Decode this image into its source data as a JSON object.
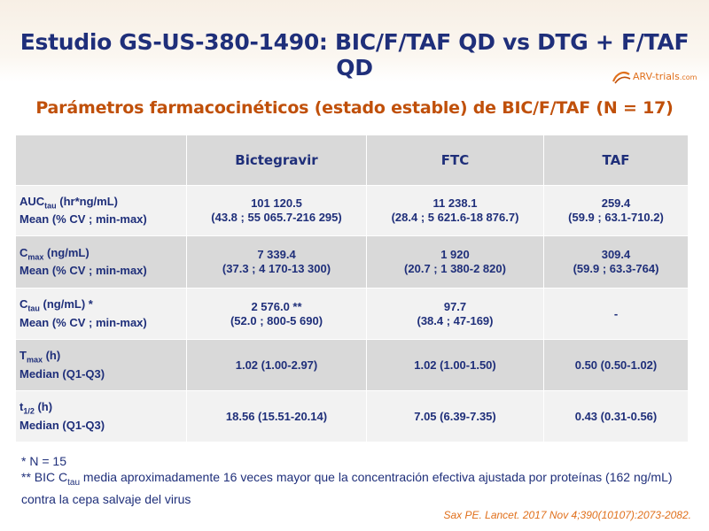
{
  "slide": {
    "title": "Estudio GS-US-380-1490: BIC/F/TAF QD vs DTG + F/TAF QD",
    "subtitle": "Parámetros farmacocinéticos (estado estable) de BIC/F/TAF (N = 17)",
    "logo": {
      "main": "ARV-trials",
      "dot_com": ".com"
    }
  },
  "table": {
    "headers": [
      "",
      "Bictegravir",
      "FTC",
      "TAF"
    ],
    "rows": [
      {
        "param_main": "AUC",
        "param_sub": "tau",
        "param_rest": " (hr*ng/mL)",
        "stat": "Mean (% CV ; min-max)",
        "cells": [
          [
            "101 120.5",
            "(43.8 ; 55 065.7-216 295)"
          ],
          [
            "11 238.1",
            "(28.4 ; 5 621.6-18 876.7)"
          ],
          [
            "259.4",
            "(59.9 ; 63.1-710.2)"
          ]
        ]
      },
      {
        "param_main": "C",
        "param_sub": "max",
        "param_rest": " (ng/mL)",
        "stat": "Mean (% CV ; min-max)",
        "cells": [
          [
            "7 339.4",
            "(37.3 ; 4 170-13 300)"
          ],
          [
            "1 920",
            "(20.7 ; 1 380-2 820)"
          ],
          [
            "309.4",
            "(59.9 ; 63.3-764)"
          ]
        ]
      },
      {
        "param_main": "C",
        "param_sub": "tau",
        "param_rest": " (ng/mL) *",
        "stat": "Mean (% CV ; min-max)",
        "cells": [
          [
            "2 576.0 **",
            "(52.0 ; 800-5 690)"
          ],
          [
            "97.7",
            "(38.4 ; 47-169)"
          ],
          [
            "-",
            ""
          ]
        ]
      },
      {
        "param_main": "T",
        "param_sub": "max",
        "param_rest": " (h)",
        "stat": "Median (Q1-Q3)",
        "cells": [
          [
            "1.02 (1.00-2.97)",
            ""
          ],
          [
            "1.02 (1.00-1.50)",
            ""
          ],
          [
            "0.50 (0.50-1.02)",
            ""
          ]
        ]
      },
      {
        "param_main": "t",
        "param_sub": "1/2",
        "param_rest": " (h)",
        "stat": "Median (Q1-Q3)",
        "cells": [
          [
            "18.56 (15.51-20.14)",
            ""
          ],
          [
            "7.05 (6.39-7.35)",
            ""
          ],
          [
            "0.43 (0.31-0.56)",
            ""
          ]
        ]
      }
    ]
  },
  "notes": {
    "n1": "* N = 15",
    "n2_pre": "** BIC C",
    "n2_sub": "tau",
    "n2_post": " media aproximadamente 16 veces mayor que la concentración efectiva ajustada por proteínas (162 ng/mL) contra la cepa salvaje del virus"
  },
  "citation": "Sax PE. Lancet. 2017 Nov 4;390(10107):2073-2082.",
  "colors": {
    "title_navy": "#1f2f7a",
    "accent_orange": "#c0500a",
    "header_gray": "#d9d9d9",
    "row_light": "#f2f2f2"
  }
}
